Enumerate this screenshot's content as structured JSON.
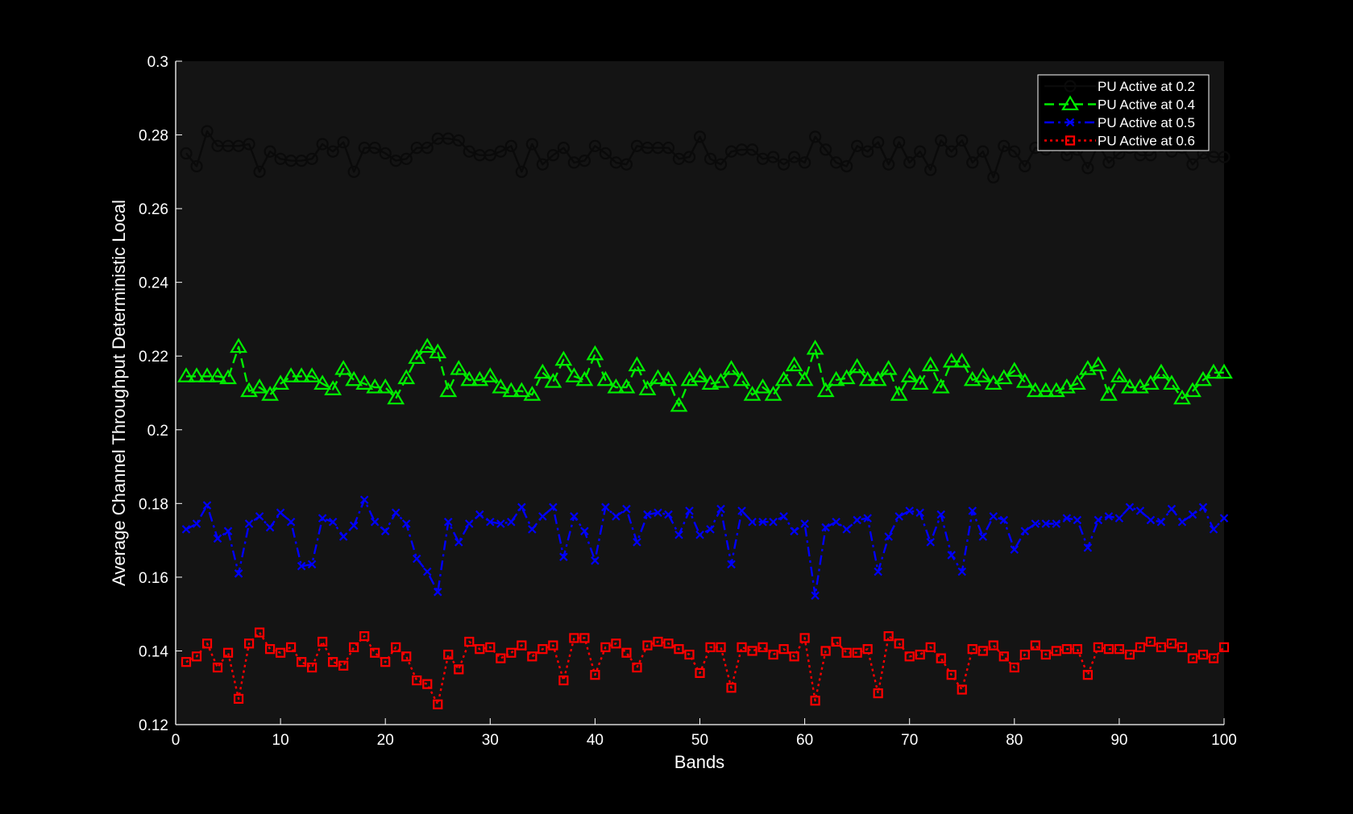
{
  "chart_data": {
    "type": "line",
    "title": "",
    "xlabel": "Bands",
    "ylabel": "Average Channel Throughput Deterministic Local",
    "xlim": [
      0,
      100
    ],
    "ylim": [
      0.12,
      0.3
    ],
    "xticks": [
      0,
      10,
      20,
      30,
      40,
      50,
      60,
      70,
      80,
      90,
      100
    ],
    "xtick_labels": [
      "0",
      "10",
      "20",
      "30",
      "40",
      "50",
      "60",
      "70",
      "80",
      "90",
      "100"
    ],
    "yticks": [
      0.12,
      0.14,
      0.16,
      0.18,
      0.2,
      0.22,
      0.24,
      0.26,
      0.28,
      0.3
    ],
    "ytick_labels": [
      "0.12",
      "0.14",
      "0.16",
      "0.18",
      "0.2",
      "0.22",
      "0.24",
      "0.26",
      "0.28",
      "0.3"
    ],
    "grid": false,
    "legend_position": "top-right",
    "plot_background": "#141414",
    "page_background": "#000000",
    "x": [
      1,
      2,
      3,
      4,
      5,
      6,
      7,
      8,
      9,
      10,
      11,
      12,
      13,
      14,
      15,
      16,
      17,
      18,
      19,
      20,
      21,
      22,
      23,
      24,
      25,
      26,
      27,
      28,
      29,
      30,
      31,
      32,
      33,
      34,
      35,
      36,
      37,
      38,
      39,
      40,
      41,
      42,
      43,
      44,
      45,
      46,
      47,
      48,
      49,
      50,
      51,
      52,
      53,
      54,
      55,
      56,
      57,
      58,
      59,
      60,
      61,
      62,
      63,
      64,
      65,
      66,
      67,
      68,
      69,
      70,
      71,
      72,
      73,
      74,
      75,
      76,
      77,
      78,
      79,
      80,
      81,
      82,
      83,
      84,
      85,
      86,
      87,
      88,
      89,
      90,
      91,
      92,
      93,
      94,
      95,
      96,
      97,
      98,
      99,
      100
    ],
    "series": [
      {
        "name": "PU Active at 0.2",
        "color": "#0a0a0a",
        "dash": "solid",
        "marker": "circle",
        "values": [
          0.275,
          0.2715,
          0.281,
          0.277,
          0.277,
          0.277,
          0.2775,
          0.27,
          0.2755,
          0.2735,
          0.273,
          0.273,
          0.2735,
          0.2775,
          0.2755,
          0.278,
          0.27,
          0.2765,
          0.2765,
          0.275,
          0.273,
          0.2735,
          0.2765,
          0.2765,
          0.279,
          0.279,
          0.2785,
          0.2755,
          0.2745,
          0.2745,
          0.2755,
          0.277,
          0.27,
          0.2775,
          0.272,
          0.2745,
          0.2765,
          0.2725,
          0.273,
          0.277,
          0.275,
          0.2725,
          0.272,
          0.277,
          0.2765,
          0.2765,
          0.2765,
          0.2735,
          0.274,
          0.2795,
          0.2735,
          0.272,
          0.2755,
          0.276,
          0.276,
          0.2735,
          0.274,
          0.272,
          0.274,
          0.2725,
          0.2795,
          0.276,
          0.2725,
          0.2715,
          0.277,
          0.2755,
          0.278,
          0.272,
          0.278,
          0.2725,
          0.2755,
          0.2705,
          0.2785,
          0.2755,
          0.2785,
          0.2725,
          0.2755,
          0.2685,
          0.277,
          0.2755,
          0.2715,
          0.2765,
          0.276,
          0.277,
          0.2745,
          0.276,
          0.271,
          0.2775,
          0.2725,
          0.275,
          0.2765,
          0.2745,
          0.2745,
          0.277,
          0.2755,
          0.2765,
          0.272,
          0.275,
          0.274,
          0.274
        ]
      },
      {
        "name": "PU Active at 0.4",
        "color": "#00ee00",
        "dash": "dashed",
        "marker": "triangle",
        "values": [
          0.2145,
          0.2145,
          0.2145,
          0.2145,
          0.214,
          0.2225,
          0.2105,
          0.2115,
          0.2095,
          0.2125,
          0.2145,
          0.2145,
          0.2145,
          0.2125,
          0.211,
          0.2165,
          0.2135,
          0.2125,
          0.2115,
          0.2115,
          0.2085,
          0.214,
          0.2195,
          0.2225,
          0.221,
          0.2105,
          0.2165,
          0.2135,
          0.2135,
          0.2145,
          0.2115,
          0.2105,
          0.2105,
          0.2095,
          0.2155,
          0.213,
          0.219,
          0.2145,
          0.2135,
          0.2205,
          0.2135,
          0.2115,
          0.2115,
          0.2175,
          0.211,
          0.214,
          0.2135,
          0.2065,
          0.2135,
          0.2145,
          0.2125,
          0.213,
          0.2165,
          0.2135,
          0.2095,
          0.2115,
          0.2095,
          0.2135,
          0.2175,
          0.2135,
          0.222,
          0.2105,
          0.2135,
          0.214,
          0.217,
          0.2135,
          0.2135,
          0.2165,
          0.2095,
          0.2145,
          0.2125,
          0.2175,
          0.2115,
          0.2185,
          0.2185,
          0.2135,
          0.2145,
          0.2125,
          0.214,
          0.216,
          0.213,
          0.2105,
          0.2105,
          0.2105,
          0.2115,
          0.2125,
          0.2165,
          0.2175,
          0.2095,
          0.2145,
          0.2115,
          0.2115,
          0.2125,
          0.2155,
          0.2125,
          0.2085,
          0.2105,
          0.2135,
          0.2155,
          0.2155
        ]
      },
      {
        "name": "PU Active at 0.5",
        "color": "#0000ff",
        "dash": "dashdot",
        "marker": "x",
        "values": [
          0.173,
          0.1745,
          0.1795,
          0.1705,
          0.1725,
          0.161,
          0.1745,
          0.1765,
          0.1735,
          0.1775,
          0.175,
          0.163,
          0.1635,
          0.176,
          0.175,
          0.171,
          0.174,
          0.181,
          0.175,
          0.1725,
          0.1775,
          0.1745,
          0.165,
          0.1615,
          0.156,
          0.175,
          0.1695,
          0.1745,
          0.177,
          0.175,
          0.1745,
          0.175,
          0.179,
          0.173,
          0.1765,
          0.179,
          0.1655,
          0.1765,
          0.1725,
          0.1645,
          0.179,
          0.1765,
          0.1785,
          0.1695,
          0.177,
          0.1775,
          0.177,
          0.1715,
          0.178,
          0.1715,
          0.173,
          0.1785,
          0.1635,
          0.178,
          0.175,
          0.175,
          0.175,
          0.1765,
          0.1725,
          0.1745,
          0.155,
          0.1735,
          0.175,
          0.173,
          0.1755,
          0.176,
          0.1615,
          0.171,
          0.1765,
          0.178,
          0.1775,
          0.1695,
          0.177,
          0.166,
          0.1615,
          0.178,
          0.171,
          0.1765,
          0.1755,
          0.1675,
          0.1725,
          0.1745,
          0.1745,
          0.1745,
          0.176,
          0.1755,
          0.168,
          0.1755,
          0.1765,
          0.176,
          0.179,
          0.178,
          0.1755,
          0.175,
          0.1785,
          0.175,
          0.177,
          0.179,
          0.173,
          0.176
        ]
      },
      {
        "name": "PU Active at 0.6",
        "color": "#ff0000",
        "dash": "dotted",
        "marker": "square",
        "values": [
          0.137,
          0.1385,
          0.142,
          0.1355,
          0.1395,
          0.127,
          0.142,
          0.145,
          0.1405,
          0.1395,
          0.141,
          0.137,
          0.1355,
          0.1425,
          0.137,
          0.136,
          0.141,
          0.144,
          0.1395,
          0.137,
          0.141,
          0.1385,
          0.132,
          0.131,
          0.1255,
          0.139,
          0.135,
          0.1425,
          0.1405,
          0.141,
          0.138,
          0.1395,
          0.1415,
          0.1385,
          0.1405,
          0.1415,
          0.132,
          0.1435,
          0.1435,
          0.1335,
          0.141,
          0.142,
          0.1395,
          0.1355,
          0.1415,
          0.1425,
          0.142,
          0.1405,
          0.139,
          0.134,
          0.141,
          0.141,
          0.13,
          0.141,
          0.14,
          0.141,
          0.139,
          0.1405,
          0.1385,
          0.1435,
          0.1265,
          0.14,
          0.1425,
          0.1395,
          0.1395,
          0.1405,
          0.1285,
          0.144,
          0.142,
          0.1385,
          0.139,
          0.141,
          0.138,
          0.1335,
          0.1295,
          0.1405,
          0.14,
          0.1415,
          0.1385,
          0.1355,
          0.139,
          0.1415,
          0.139,
          0.14,
          0.1405,
          0.1405,
          0.1335,
          0.141,
          0.1405,
          0.1405,
          0.139,
          0.141,
          0.1425,
          0.141,
          0.142,
          0.141,
          0.138,
          0.139,
          0.138,
          0.141
        ]
      }
    ]
  }
}
